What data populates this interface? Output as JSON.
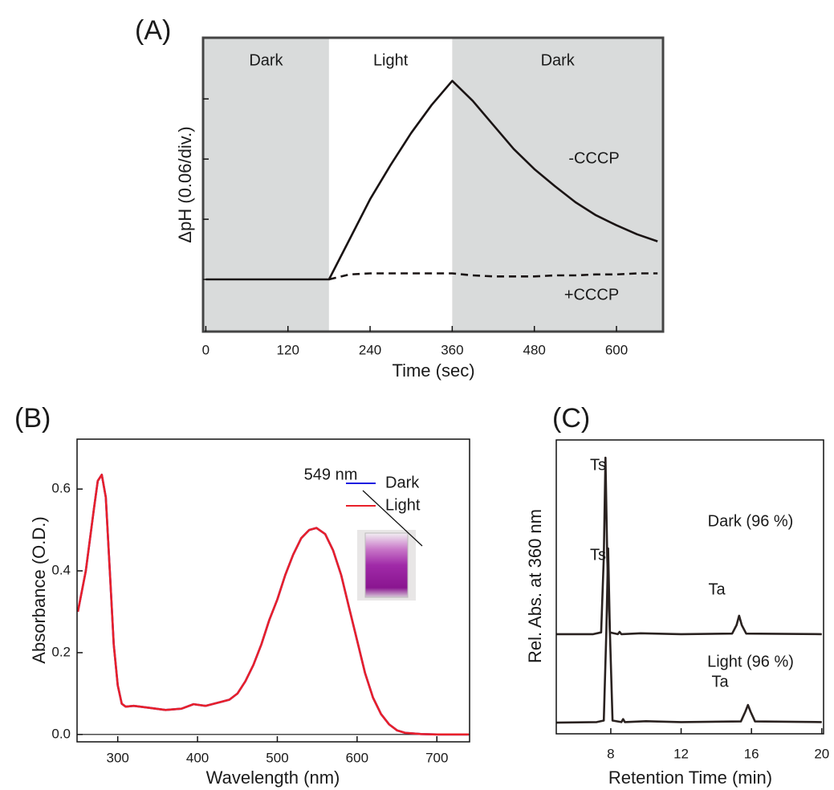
{
  "chart_data": [
    {
      "type": "line",
      "label": "(A)",
      "xlabel": "Time (sec)",
      "ylabel": "ΔpH (0.06/div.)",
      "x": [
        0,
        30,
        60,
        90,
        120,
        150,
        180,
        210,
        240,
        270,
        300,
        330,
        360,
        390,
        420,
        450,
        480,
        510,
        540,
        570,
        600,
        630,
        660
      ],
      "xlim": [
        -4,
        668
      ],
      "xticks": [
        0,
        120,
        240,
        360,
        480,
        600
      ],
      "ylim": [
        -0.052,
        0.241
      ],
      "yticks": [
        0,
        0.06,
        0.12,
        0.18
      ],
      "regions": [
        {
          "label": "Dark",
          "start": -4,
          "end": 180,
          "color": "#d9dbdb"
        },
        {
          "label": "Light",
          "start": 180,
          "end": 360,
          "color": "#ffffff"
        },
        {
          "label": "Dark",
          "start": 360,
          "end": 668,
          "color": "#d9dbdb"
        }
      ],
      "series": [
        {
          "name": "-CCCP",
          "color": "#1a1414",
          "dash": false,
          "values": [
            0,
            0,
            0,
            0,
            0,
            0,
            0,
            0.04,
            0.08,
            0.114,
            0.146,
            0.174,
            0.198,
            0.178,
            0.154,
            0.13,
            0.11,
            0.093,
            0.077,
            0.064,
            0.054,
            0.045,
            0.038
          ]
        },
        {
          "name": "+CCCP",
          "color": "#1a1414",
          "dash": true,
          "values": [
            null,
            null,
            null,
            null,
            null,
            null,
            0,
            0.005,
            0.006,
            0.006,
            0.006,
            0.006,
            0.006,
            0.004,
            0.003,
            0.003,
            0.003,
            0.004,
            0.004,
            0.005,
            0.005,
            0.006,
            0.006
          ]
        }
      ]
    },
    {
      "type": "line",
      "label": "(B)",
      "xlabel": "Wavelength (nm)",
      "ylabel": "Absorbance (O.D.)",
      "annotation": "549 nm",
      "x": [
        250,
        260,
        270,
        275,
        280,
        285,
        290,
        295,
        300,
        305,
        310,
        320,
        340,
        360,
        380,
        395,
        410,
        430,
        440,
        450,
        460,
        470,
        480,
        490,
        500,
        510,
        520,
        530,
        540,
        549,
        560,
        570,
        580,
        590,
        600,
        610,
        620,
        630,
        640,
        650,
        660,
        680,
        700,
        740
      ],
      "xlim": [
        249,
        741
      ],
      "xticks": [
        300,
        400,
        500,
        600,
        700
      ],
      "ylim": [
        -0.018,
        0.722
      ],
      "yticks": [
        {
          "value": 0,
          "label": "0.0"
        },
        0.2,
        0.4,
        0.6
      ],
      "legend": "upper right",
      "series": [
        {
          "name": "Dark",
          "color": "#1f1fe0",
          "values": [
            0.3,
            0.4,
            0.55,
            0.62,
            0.635,
            0.58,
            0.4,
            0.22,
            0.12,
            0.075,
            0.068,
            0.07,
            0.065,
            0.06,
            0.063,
            0.074,
            0.07,
            0.08,
            0.085,
            0.1,
            0.13,
            0.17,
            0.22,
            0.28,
            0.33,
            0.39,
            0.44,
            0.48,
            0.5,
            0.505,
            0.49,
            0.45,
            0.39,
            0.31,
            0.23,
            0.15,
            0.09,
            0.05,
            0.025,
            0.01,
            0.004,
            0.001,
            0,
            0
          ]
        },
        {
          "name": "Light",
          "color": "#e8202a",
          "values": [
            0.3,
            0.4,
            0.55,
            0.62,
            0.635,
            0.58,
            0.4,
            0.22,
            0.12,
            0.075,
            0.068,
            0.07,
            0.065,
            0.06,
            0.063,
            0.074,
            0.07,
            0.08,
            0.085,
            0.1,
            0.13,
            0.17,
            0.22,
            0.28,
            0.33,
            0.39,
            0.44,
            0.48,
            0.5,
            0.505,
            0.49,
            0.45,
            0.39,
            0.31,
            0.23,
            0.15,
            0.09,
            0.05,
            0.025,
            0.01,
            0.004,
            0.001,
            0,
            0
          ]
        }
      ]
    },
    {
      "type": "line",
      "label": "(C)",
      "xlabel": "Retention Time (min)",
      "ylabel": "Rel. Abs. at 360 nm",
      "xlim": [
        4.9,
        20.1
      ],
      "xticks": [
        8,
        12,
        16,
        20
      ],
      "ylim": [
        0,
        1
      ],
      "series": [
        {
          "name": "Dark (96 %)",
          "color": "#2a2220",
          "peak_labels": [
            "Ts",
            "Ta"
          ],
          "x": [
            4.9,
            7.0,
            7.45,
            7.6,
            7.7,
            7.8,
            7.95,
            8.4,
            8.5,
            8.6,
            9.7,
            12,
            14.9,
            15.15,
            15.3,
            15.45,
            15.7,
            20
          ],
          "values": [
            0.339,
            0.339,
            0.345,
            0.6,
            0.94,
            0.6,
            0.345,
            0.339,
            0.347,
            0.339,
            0.342,
            0.339,
            0.341,
            0.37,
            0.402,
            0.37,
            0.341,
            0.339
          ]
        },
        {
          "name": "Light (96 %)",
          "color": "#2a2220",
          "peak_labels": [
            "Ts",
            "Ta"
          ],
          "x": [
            4.9,
            7.2,
            7.6,
            7.75,
            7.85,
            7.95,
            8.1,
            8.6,
            8.7,
            8.8,
            10,
            12,
            15.4,
            15.65,
            15.8,
            15.95,
            16.2,
            20
          ],
          "values": [
            0.038,
            0.04,
            0.045,
            0.35,
            0.631,
            0.35,
            0.045,
            0.04,
            0.05,
            0.04,
            0.043,
            0.04,
            0.042,
            0.075,
            0.098,
            0.075,
            0.042,
            0.04
          ]
        }
      ]
    }
  ]
}
